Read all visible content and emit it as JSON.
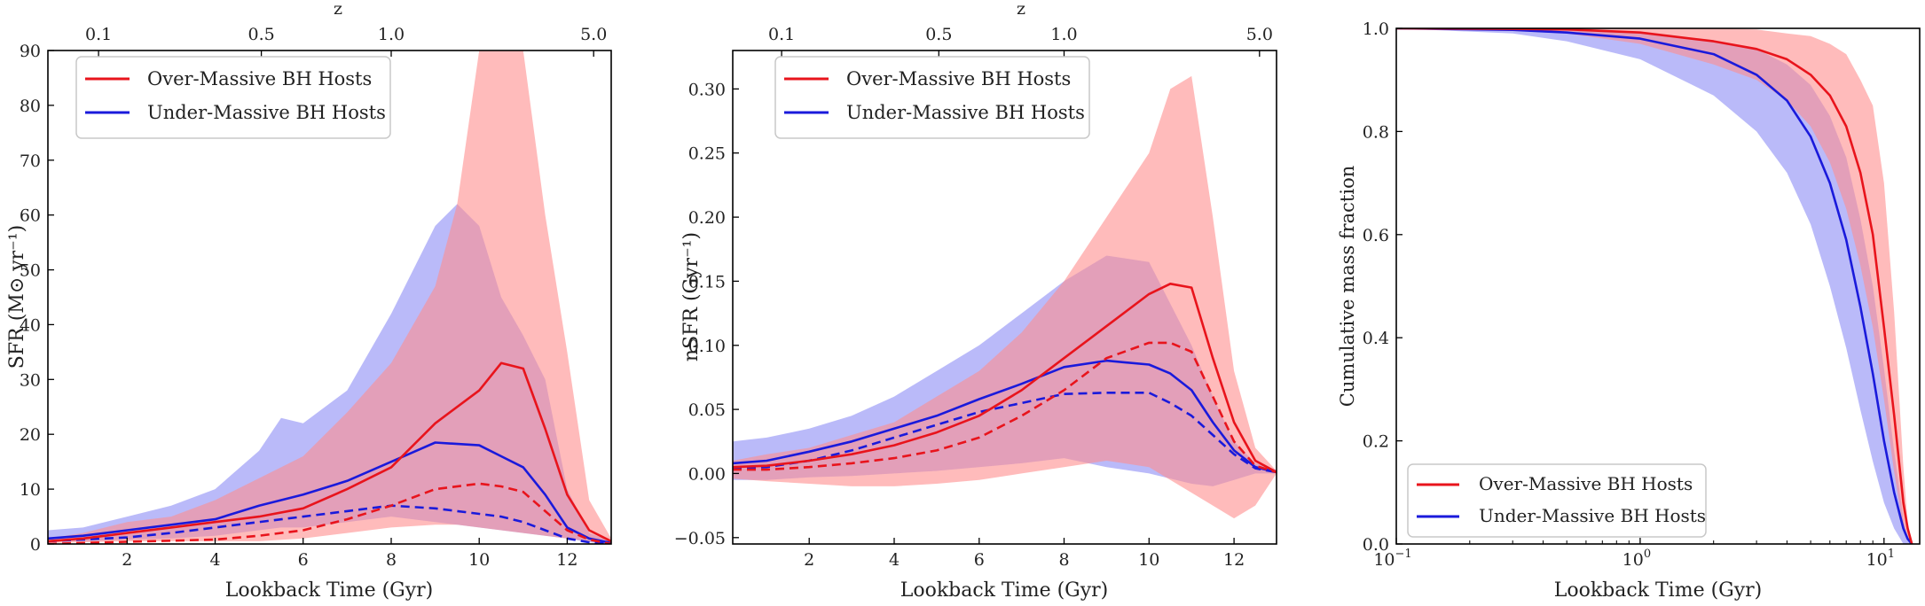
{
  "colors": {
    "over": "#e8141c",
    "under": "#1a1adb",
    "over_fill": "#ff8e8e",
    "under_fill": "#8c8cf5"
  },
  "chart_data": [
    {
      "type": "line",
      "id": "sfr",
      "xlabel": "Lookback Time (Gyr)",
      "ylabel": "SFR (M⊙ yr⁻¹)",
      "toplabel": "z",
      "xlim": [
        0.2,
        13.0
      ],
      "ylim": [
        0,
        90
      ],
      "xticks": [
        2,
        4,
        6,
        8,
        10,
        12
      ],
      "xtick_labels": [
        "2",
        "4",
        "6",
        "8",
        "10",
        "12"
      ],
      "yticks": [
        0,
        10,
        20,
        30,
        40,
        50,
        60,
        70,
        80,
        90
      ],
      "ytick_labels": [
        "0",
        "10",
        "20",
        "30",
        "40",
        "50",
        "60",
        "70",
        "80",
        "90"
      ],
      "top_ticks": [
        1.35,
        5.05,
        8.0,
        12.6
      ],
      "top_tick_labels": [
        "0.1",
        "0.5",
        "1.0",
        "5.0"
      ],
      "legend": [
        "Over-Massive BH Hosts",
        "Under-Massive BH Hosts"
      ],
      "legend_position": "top-left",
      "x": [
        0.2,
        1,
        2,
        3,
        4,
        5,
        6,
        7,
        8,
        9,
        10,
        10.5,
        11,
        11.5,
        12,
        12.5,
        13
      ],
      "series": [
        {
          "name": "Over-Massive BH Hosts",
          "role": "median",
          "y": [
            0.5,
            1.0,
            2.0,
            3.0,
            4.0,
            5.0,
            6.5,
            10.0,
            14.0,
            22.0,
            28.0,
            33.0,
            32.0,
            21.0,
            9.0,
            2.5,
            0.5
          ]
        },
        {
          "name": "Over-Massive BH Hosts",
          "role": "mean",
          "y": [
            0.0,
            0.2,
            0.4,
            0.6,
            0.8,
            1.5,
            2.5,
            4.5,
            7.0,
            10.0,
            11.0,
            10.5,
            9.5,
            6.0,
            2.5,
            0.8,
            0.0
          ]
        },
        {
          "name": "Under-Massive BH Hosts",
          "role": "median",
          "y": [
            1.0,
            1.5,
            2.5,
            3.5,
            4.5,
            7.0,
            9.0,
            11.5,
            15.0,
            18.5,
            18.0,
            16.0,
            14.0,
            9.0,
            3.0,
            1.0,
            0.2
          ]
        },
        {
          "name": "Under-Massive BH Hosts",
          "role": "mean",
          "y": [
            0.5,
            0.8,
            1.2,
            2.0,
            3.0,
            4.0,
            5.0,
            6.0,
            7.0,
            6.5,
            5.5,
            5.0,
            4.0,
            2.5,
            1.0,
            0.3,
            0.0
          ]
        }
      ],
      "bands": [
        {
          "name": "Under-Massive BH Hosts",
          "x": [
            0.2,
            1,
            2,
            3,
            4,
            5,
            5.5,
            6,
            7,
            8,
            9,
            9.5,
            10,
            10.5,
            11,
            11.5,
            12,
            12.5,
            13
          ],
          "lower": [
            0.5,
            0.5,
            0.8,
            1.0,
            1.5,
            2.5,
            3.0,
            3.0,
            4.0,
            5.0,
            4.0,
            3.5,
            3.0,
            2.5,
            2.0,
            1.5,
            1.0,
            0.3,
            0.0
          ],
          "upper": [
            2.5,
            3.0,
            5.0,
            7.0,
            10.0,
            17.0,
            23.0,
            22.0,
            28.0,
            42.0,
            58.0,
            62.0,
            58.0,
            45.0,
            38.0,
            30.0,
            10.0,
            2.0,
            0.5
          ]
        },
        {
          "name": "Over-Massive BH Hosts",
          "x": [
            0.2,
            1,
            2,
            3,
            4,
            5,
            6,
            7,
            8,
            9,
            9.5,
            10,
            10.5,
            11,
            11.5,
            12,
            12.5,
            13
          ],
          "lower": [
            0.2,
            0.3,
            0.5,
            0.5,
            0.5,
            0.5,
            1.0,
            2.0,
            3.0,
            3.5,
            3.5,
            3.0,
            2.5,
            2.0,
            1.5,
            1.0,
            0.5,
            0.0
          ],
          "upper": [
            1.0,
            2.0,
            4.0,
            5.0,
            8.0,
            12.0,
            16.0,
            24.0,
            33.0,
            47.0,
            62.0,
            90.0,
            90.0,
            90.0,
            60.0,
            35.0,
            8.0,
            1.0
          ]
        }
      ]
    },
    {
      "type": "line",
      "id": "nsfr",
      "xlabel": "Lookback Time (Gyr)",
      "ylabel": "nSFR (Gyr⁻¹)",
      "toplabel": "z",
      "xlim": [
        0.2,
        13.0
      ],
      "ylim": [
        -0.055,
        0.33
      ],
      "xticks": [
        2,
        4,
        6,
        8,
        10,
        12
      ],
      "xtick_labels": [
        "2",
        "4",
        "6",
        "8",
        "10",
        "12"
      ],
      "yticks": [
        -0.05,
        0.0,
        0.05,
        0.1,
        0.15,
        0.2,
        0.25,
        0.3
      ],
      "ytick_labels": [
        "−0.05",
        "0.00",
        "0.05",
        "0.10",
        "0.15",
        "0.20",
        "0.25",
        "0.30"
      ],
      "top_ticks": [
        1.35,
        5.05,
        8.0,
        12.6
      ],
      "top_tick_labels": [
        "0.1",
        "0.5",
        "1.0",
        "5.0"
      ],
      "legend": [
        "Over-Massive BH Hosts",
        "Under-Massive BH Hosts"
      ],
      "legend_position": "top-left",
      "x": [
        0.2,
        1,
        2,
        3,
        4,
        5,
        6,
        7,
        8,
        9,
        10,
        10.5,
        11,
        11.5,
        12,
        12.5,
        13
      ],
      "series": [
        {
          "name": "Over-Massive BH Hosts",
          "role": "median",
          "y": [
            0.005,
            0.006,
            0.01,
            0.015,
            0.022,
            0.032,
            0.045,
            0.065,
            0.09,
            0.115,
            0.14,
            0.148,
            0.145,
            0.09,
            0.04,
            0.01,
            0.001
          ]
        },
        {
          "name": "Over-Massive BH Hosts",
          "role": "mean",
          "y": [
            0.003,
            0.003,
            0.005,
            0.008,
            0.012,
            0.018,
            0.028,
            0.045,
            0.065,
            0.09,
            0.102,
            0.102,
            0.095,
            0.06,
            0.025,
            0.006,
            0.001
          ]
        },
        {
          "name": "Under-Massive BH Hosts",
          "role": "median",
          "y": [
            0.008,
            0.01,
            0.017,
            0.025,
            0.035,
            0.045,
            0.058,
            0.07,
            0.083,
            0.088,
            0.085,
            0.078,
            0.065,
            0.04,
            0.018,
            0.005,
            0.001
          ]
        },
        {
          "name": "Under-Massive BH Hosts",
          "role": "mean",
          "y": [
            0.004,
            0.005,
            0.01,
            0.018,
            0.028,
            0.038,
            0.048,
            0.055,
            0.062,
            0.063,
            0.063,
            0.055,
            0.045,
            0.03,
            0.015,
            0.004,
            0.001
          ]
        }
      ],
      "bands": [
        {
          "name": "Under-Massive BH Hosts",
          "x": [
            0.2,
            1,
            2,
            3,
            4,
            5,
            6,
            7,
            8,
            9,
            10,
            11,
            11.5,
            12,
            12.5,
            13
          ],
          "lower": [
            -0.005,
            -0.005,
            -0.003,
            -0.002,
            0.0,
            0.002,
            0.005,
            0.008,
            0.012,
            0.005,
            0.0,
            -0.008,
            -0.01,
            -0.005,
            0.0,
            0.0
          ],
          "upper": [
            0.025,
            0.028,
            0.035,
            0.045,
            0.06,
            0.08,
            0.1,
            0.125,
            0.15,
            0.17,
            0.165,
            0.1,
            0.06,
            0.025,
            0.008,
            0.003
          ]
        },
        {
          "name": "Over-Massive BH Hosts",
          "x": [
            0.2,
            1,
            2,
            3,
            4,
            5,
            6,
            7,
            8,
            9,
            10,
            10.5,
            11,
            11.5,
            12,
            12.5,
            13
          ],
          "lower": [
            -0.004,
            -0.006,
            -0.008,
            -0.01,
            -0.01,
            -0.008,
            -0.005,
            0.0,
            0.005,
            0.01,
            0.005,
            -0.005,
            -0.015,
            -0.025,
            -0.035,
            -0.025,
            0.0
          ],
          "upper": [
            0.01,
            0.015,
            0.02,
            0.03,
            0.04,
            0.06,
            0.08,
            0.11,
            0.15,
            0.2,
            0.25,
            0.3,
            0.31,
            0.2,
            0.08,
            0.02,
            0.002
          ]
        }
      ]
    },
    {
      "type": "line",
      "id": "cumulative",
      "xscale": "log",
      "xlabel": "Lookback Time (Gyr)",
      "ylabel": "Cumulative mass fraction",
      "xlim": [
        0.1,
        14.0
      ],
      "ylim": [
        0.0,
        1.0
      ],
      "xticks": [
        0.1,
        1,
        10
      ],
      "xtick_base_labels": [
        "10",
        "10",
        "10"
      ],
      "xtick_exp_labels": [
        "−1",
        "0",
        "1"
      ],
      "yticks": [
        0.0,
        0.2,
        0.4,
        0.6,
        0.8,
        1.0
      ],
      "ytick_labels": [
        "0.0",
        "0.2",
        "0.4",
        "0.6",
        "0.8",
        "1.0"
      ],
      "legend": [
        "Over-Massive BH Hosts",
        "Under-Massive BH Hosts"
      ],
      "legend_position": "bottom-left",
      "x": [
        0.1,
        0.3,
        0.5,
        1,
        2,
        3,
        4,
        5,
        6,
        7,
        8,
        9,
        10,
        11,
        12,
        12.5,
        13
      ],
      "series": [
        {
          "name": "Over-Massive BH Hosts",
          "y": [
            1.0,
            0.999,
            0.998,
            0.992,
            0.975,
            0.96,
            0.94,
            0.91,
            0.87,
            0.81,
            0.72,
            0.6,
            0.42,
            0.25,
            0.08,
            0.03,
            0.0
          ]
        },
        {
          "name": "Under-Massive BH Hosts",
          "y": [
            1.0,
            0.997,
            0.992,
            0.98,
            0.95,
            0.91,
            0.86,
            0.79,
            0.7,
            0.59,
            0.46,
            0.33,
            0.2,
            0.1,
            0.03,
            0.01,
            0.0
          ]
        }
      ],
      "bands": [
        {
          "name": "Under-Massive BH Hosts",
          "x": [
            0.1,
            0.3,
            0.5,
            1,
            2,
            3,
            4,
            5,
            6,
            7,
            8,
            9,
            10,
            11,
            12,
            12.5,
            13
          ],
          "lower": [
            1.0,
            0.99,
            0.975,
            0.94,
            0.87,
            0.8,
            0.72,
            0.62,
            0.5,
            0.38,
            0.26,
            0.16,
            0.08,
            0.03,
            0.0,
            0.0,
            0.0
          ],
          "upper": [
            1.0,
            1.0,
            0.998,
            0.99,
            0.975,
            0.96,
            0.93,
            0.89,
            0.83,
            0.75,
            0.63,
            0.5,
            0.34,
            0.18,
            0.05,
            0.01,
            0.0
          ]
        },
        {
          "name": "Over-Massive BH Hosts",
          "x": [
            0.1,
            0.3,
            0.5,
            1,
            2,
            3,
            4,
            5,
            6,
            7,
            8,
            9,
            10,
            11,
            12,
            12.5,
            13
          ],
          "lower": [
            1.0,
            0.995,
            0.99,
            0.97,
            0.93,
            0.9,
            0.86,
            0.81,
            0.74,
            0.65,
            0.54,
            0.42,
            0.28,
            0.14,
            0.03,
            0.01,
            0.0
          ],
          "upper": [
            1.0,
            1.0,
            1.0,
            1.0,
            1.0,
            0.998,
            0.99,
            0.985,
            0.97,
            0.95,
            0.9,
            0.85,
            0.7,
            0.45,
            0.15,
            0.04,
            0.0
          ]
        }
      ]
    }
  ]
}
